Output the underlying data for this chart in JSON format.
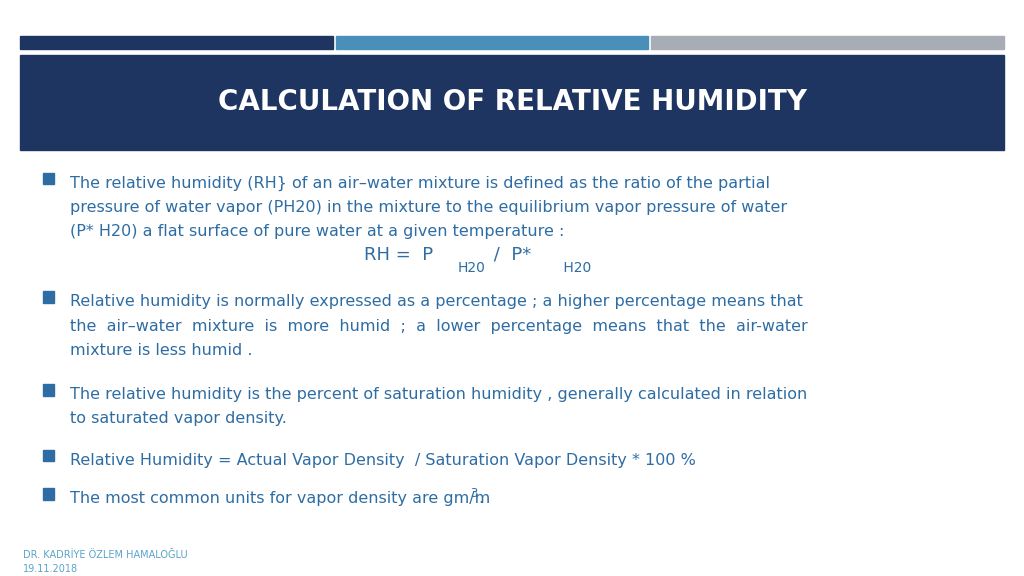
{
  "title": "CALCULATION OF RELATIVE HUMIDITY",
  "title_color": "#ffffff",
  "title_bg_color": "#1e3461",
  "bar1_color": "#1e3461",
  "bar2_color": "#4a8fba",
  "bar3_color": "#a8adb5",
  "bg_color": "#ffffff",
  "text_color": "#2e6da4",
  "bullet_color": "#2e6da4",
  "footer_text": "DR. KADRİYE ÖZLEM HAMALOĞLU\n19.11.2018",
  "bullet1_line1": "The relative humidity (RH} of an air–water mixture is defined as the ratio of the partial",
  "bullet1_line2": "pressure of water vapor (PH20) in the mixture to the equilibrium vapor pressure of water",
  "bullet1_line3": "(P* H20) a flat surface of pure water at a given temperature :",
  "bullet2_line1": "Relative humidity is normally expressed as a percentage ; a higher percentage means that",
  "bullet2_line2": "the  air–water  mixture  is  more  humid  ;  a  lower  percentage  means  that  the  air-water",
  "bullet2_line3": "mixture is less humid .",
  "bullet3_line1": "The relative humidity is the percent of saturation humidity , generally calculated in relation",
  "bullet3_line2": "to saturated vapor density.",
  "bullet4": "Relative Humidity = Actual Vapor Density  / Saturation Vapor Density * 100 %",
  "bullet5_pre": "The most common units for vapor density are gm/m",
  "bullet5_sup": "3",
  "bullet5_post": ".",
  "footer_color": "#5ba3c9",
  "title_fontsize": 20,
  "body_fontsize": 11.5,
  "formula_fontsize": 13,
  "formula_sub_fontsize": 10,
  "footer_fontsize": 7
}
